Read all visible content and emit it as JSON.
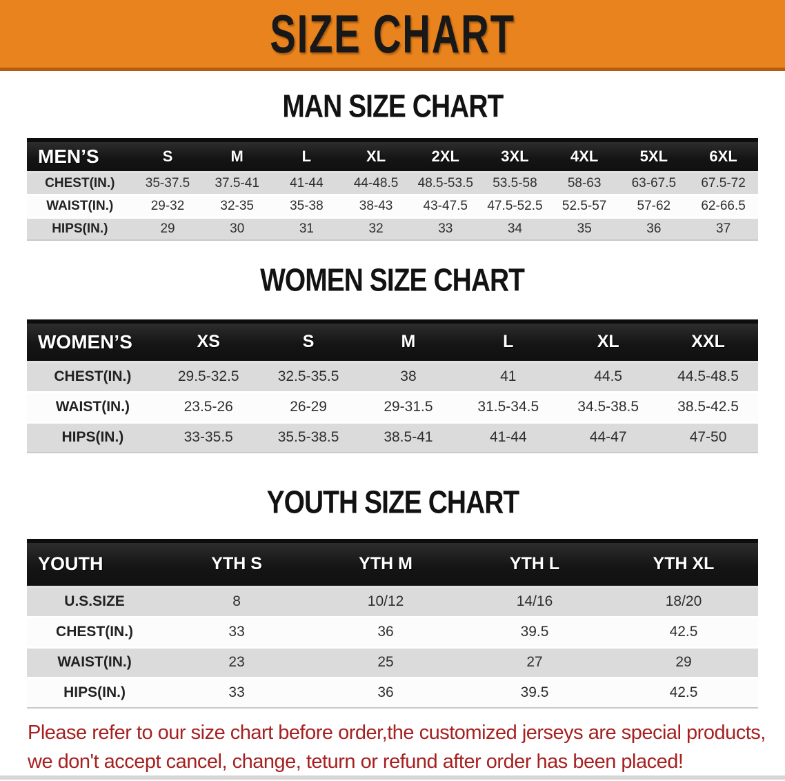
{
  "banner": {
    "title": "SIZE CHART",
    "bg_color": "#E8831D",
    "edge_color": "#B45C10",
    "text_color": "#181818"
  },
  "colors": {
    "table_header_bg": "#161616",
    "table_row_gray": "#DBDBDB",
    "table_row_white": "#FCFCFC",
    "disclaimer_red": "#A62020"
  },
  "sections": [
    {
      "heading": "MAN SIZE CHART",
      "table": {
        "label": "MEN’S",
        "columns": [
          "S",
          "M",
          "L",
          "XL",
          "2XL",
          "3XL",
          "4XL",
          "5XL",
          "6XL"
        ],
        "rows": [
          {
            "label": "CHEST(IN.)",
            "values": [
              "35-37.5",
              "37.5-41",
              "41-44",
              "44-48.5",
              "48.5-53.5",
              "53.5-58",
              "58-63",
              "63-67.5",
              "67.5-72"
            ]
          },
          {
            "label": "WAIST(IN.)",
            "values": [
              "29-32",
              "32-35",
              "35-38",
              "38-43",
              "43-47.5",
              "47.5-52.5",
              "52.5-57",
              "57-62",
              "62-66.5"
            ]
          },
          {
            "label": "HIPS(IN.)",
            "values": [
              "29",
              "30",
              "31",
              "32",
              "33",
              "34",
              "35",
              "36",
              "37"
            ]
          }
        ]
      }
    },
    {
      "heading": "WOMEN SIZE CHART",
      "table": {
        "label": "WOMEN’S",
        "columns": [
          "XS",
          "S",
          "M",
          "L",
          "XL",
          "XXL"
        ],
        "rows": [
          {
            "label": "CHEST(IN.)",
            "values": [
              "29.5-32.5",
              "32.5-35.5",
              "38",
              "41",
              "44.5",
              "44.5-48.5"
            ]
          },
          {
            "label": "WAIST(IN.)",
            "values": [
              "23.5-26",
              "26-29",
              "29-31.5",
              "31.5-34.5",
              "34.5-38.5",
              "38.5-42.5"
            ]
          },
          {
            "label": "HIPS(IN.)",
            "values": [
              "33-35.5",
              "35.5-38.5",
              "38.5-41",
              "41-44",
              "44-47",
              "47-50"
            ]
          }
        ]
      }
    },
    {
      "heading": "YOUTH SIZE CHART",
      "table": {
        "label": "YOUTH",
        "columns": [
          "YTH S",
          "YTH M",
          "YTH L",
          "YTH XL"
        ],
        "rows": [
          {
            "label": "U.S.SIZE",
            "values": [
              "8",
              "10/12",
              "14/16",
              "18/20"
            ]
          },
          {
            "label": "CHEST(IN.)",
            "values": [
              "33",
              "36",
              "39.5",
              "42.5"
            ]
          },
          {
            "label": "WAIST(IN.)",
            "values": [
              "23",
              "25",
              "27",
              "29"
            ]
          },
          {
            "label": "HIPS(IN.)",
            "values": [
              "33",
              "36",
              "39.5",
              "42.5"
            ]
          }
        ]
      }
    }
  ],
  "disclaimer": {
    "line1": "Please refer to our size chart before order,the customized jerseys are special products,",
    "line2": "we don't accept cancel, change, teturn or refund after order has been placed!"
  }
}
